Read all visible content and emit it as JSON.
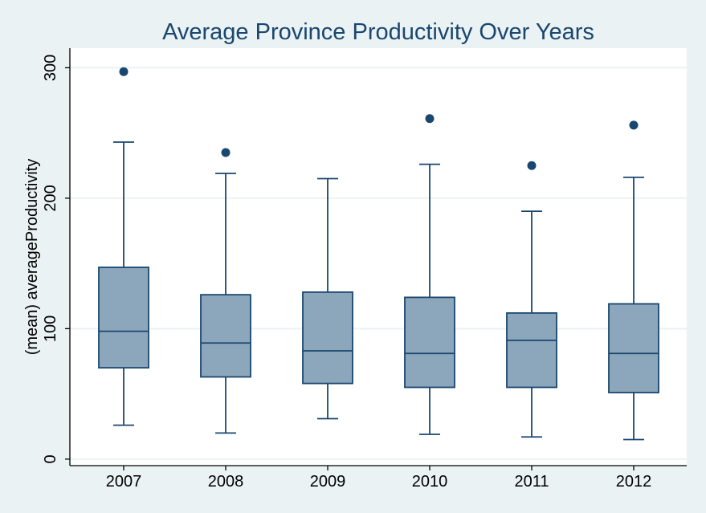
{
  "chart_data": {
    "type": "box",
    "title": "Average Province Productivity Over Years",
    "xlabel": "",
    "ylabel": "(mean) averageProductivity",
    "ylim": [
      -5,
      315
    ],
    "yticks": [
      0,
      100,
      200,
      300
    ],
    "grid": true,
    "categories": [
      "2007",
      "2008",
      "2009",
      "2010",
      "2011",
      "2012"
    ],
    "boxes": [
      {
        "category": "2007",
        "whisker_low": 26,
        "q1": 70,
        "median": 98,
        "q3": 147,
        "whisker_high": 243,
        "outliers": [
          297
        ]
      },
      {
        "category": "2008",
        "whisker_low": 20,
        "q1": 63,
        "median": 89,
        "q3": 126,
        "whisker_high": 219,
        "outliers": [
          235
        ]
      },
      {
        "category": "2009",
        "whisker_low": 31,
        "q1": 58,
        "median": 83,
        "q3": 128,
        "whisker_high": 215,
        "outliers": []
      },
      {
        "category": "2010",
        "whisker_low": 19,
        "q1": 55,
        "median": 81,
        "q3": 124,
        "whisker_high": 226,
        "outliers": [
          261
        ]
      },
      {
        "category": "2011",
        "whisker_low": 17,
        "q1": 55,
        "median": 91,
        "q3": 112,
        "whisker_high": 190,
        "outliers": [
          225
        ]
      },
      {
        "category": "2012",
        "whisker_low": 15,
        "q1": 51,
        "median": 81,
        "q3": 119,
        "whisker_high": 216,
        "outliers": [
          256
        ]
      }
    ],
    "colors": {
      "background": "#eaf2f3",
      "plot_area": "#ffffff",
      "box_fill": "#8ca6bc",
      "line": "#1a476f",
      "title": "#1a476f"
    }
  }
}
